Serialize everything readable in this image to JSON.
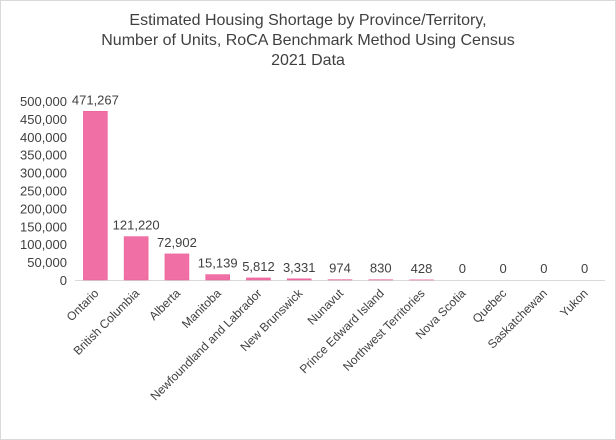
{
  "chart_data": {
    "type": "bar",
    "title": "Estimated Housing Shortage by Province/Territory, Number of Units, RoCA Benchmark Method Using Census 2021 Data",
    "title_lines": [
      "Estimated Housing Shortage by Province/Territory,",
      "Number of Units, RoCA Benchmark Method Using Census",
      "2021 Data"
    ],
    "xlabel": "",
    "ylabel": "",
    "categories": [
      "Ontario",
      "British Columbia",
      "Alberta",
      "Manitoba",
      "Newfoundland and Labrador",
      "New Brunswick",
      "Nunavut",
      "Prince Edward Island",
      "Northwest Territories",
      "Nova Scotia",
      "Quebec",
      "Saskatchewan",
      "Yukon"
    ],
    "category_labels": [
      "Ontario",
      "British  Columbia",
      "Alberta",
      "Manitoba",
      "Newfoundland  and  Labrador",
      "New Brunswick",
      "Nunavut",
      "Prince  Edward  Island",
      "Northwest  Territories",
      "Nova Scotia",
      "Quebec",
      "Saskatchewan",
      "Yukon"
    ],
    "values": [
      471267,
      121220,
      72902,
      15139,
      5812,
      3331,
      974,
      830,
      428,
      0,
      0,
      0,
      0
    ],
    "data_labels": [
      "471,267",
      "121,220",
      "72,902",
      "15,139",
      "5,812",
      "3,331",
      "974",
      "830",
      "428",
      "0",
      "0",
      "0",
      "0"
    ],
    "ylim": [
      0,
      500000
    ],
    "yticks": [
      0,
      50000,
      100000,
      150000,
      200000,
      250000,
      300000,
      350000,
      400000,
      450000,
      500000
    ],
    "ytick_labels": [
      "0",
      "50,000",
      "100,000",
      "150,000",
      "200,000",
      "250,000",
      "300,000",
      "350,000",
      "400,000",
      "450,000",
      "500,000"
    ],
    "grid": false,
    "legend": "none",
    "colors": {
      "bar": "#f06fa5",
      "bar_edge": "#e85a95",
      "text": "#404040",
      "axis": "#d9d9d9"
    }
  }
}
